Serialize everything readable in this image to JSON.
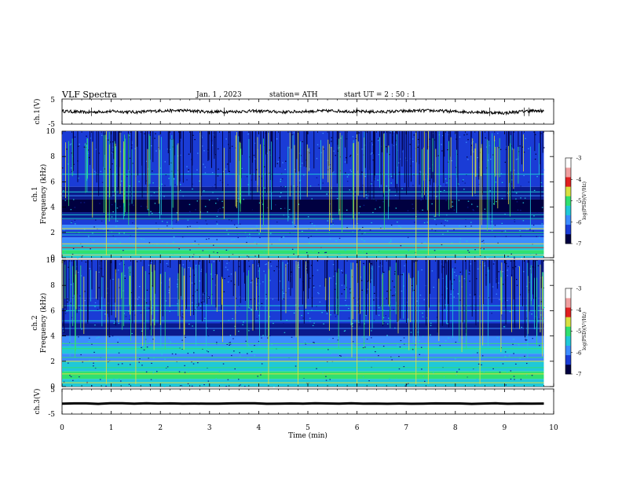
{
  "header": {
    "title": "VLF  Spectra",
    "date": "Jan.  1  , 2023",
    "station": "station= ATH",
    "start": "start  UT  =   2  : 50 : 1"
  },
  "colors": {
    "dark": "#000040",
    "navy": "#0a1a8c",
    "blue": "#1a3cd6",
    "lightblue": "#3c8cff",
    "cyan": "#20c8d8",
    "green": "#30e070",
    "yellow": "#d8e040",
    "red": "#e02020",
    "trace": "#000000"
  },
  "chart_data": [
    {
      "name": "ch1-waveform",
      "type": "line",
      "ylabel": "ch.1(V)",
      "ylim": [
        -5,
        5
      ],
      "yticks": [
        "5",
        "-5"
      ],
      "x": [
        0,
        0.5,
        1,
        1.5,
        2,
        2.5,
        3,
        3.5,
        4,
        4.5,
        5,
        5.5,
        6,
        6.5,
        7,
        7.5,
        8,
        8.5,
        9,
        9.5,
        9.8
      ],
      "values": [
        0.2,
        -0.3,
        0.1,
        -0.2,
        0.3,
        0.4,
        -0.1,
        0.0,
        0.2,
        -0.2,
        0.1,
        0.3,
        0.0,
        -0.1,
        0.2,
        0.4,
        0.0,
        -0.2,
        -0.6,
        0.3,
        0.2
      ]
    },
    {
      "name": "ch1-spectrogram",
      "type": "heatmap",
      "ylabel": "ch.1\nFrequency (kHz)",
      "ylim": [
        0,
        10
      ],
      "yticks": [
        "0",
        "2",
        "4",
        "6",
        "8",
        "10"
      ],
      "colorbar": {
        "label": "log(PSD)(V²/Hz)",
        "range": [
          -7,
          -3
        ],
        "ticks": [
          "-3",
          "-4",
          "-5",
          "-6",
          "-7"
        ]
      }
    },
    {
      "name": "ch2-spectrogram",
      "type": "heatmap",
      "ylabel": "ch.2\nFrequency (kHz)",
      "ylim": [
        0,
        10
      ],
      "yticks": [
        "0",
        "2",
        "4",
        "6",
        "8",
        "10"
      ],
      "colorbar": {
        "label": "log(PSD)(V²/Hz)",
        "range": [
          -7,
          -3
        ],
        "ticks": [
          "-3",
          "-4",
          "-5",
          "-6",
          "-7"
        ]
      }
    },
    {
      "name": "ch3-waveform",
      "type": "line",
      "ylabel": "ch.3(V)",
      "ylim": [
        -5,
        5
      ],
      "yticks": [
        "5",
        "-5"
      ],
      "x": [
        0,
        9.8
      ],
      "values": [
        -0.8,
        -0.8
      ]
    }
  ],
  "xaxis": {
    "label": "Time  (min)",
    "range": [
      0,
      10
    ],
    "ticks": [
      "0",
      "1",
      "2",
      "3",
      "4",
      "5",
      "6",
      "7",
      "8",
      "9",
      "10"
    ]
  }
}
